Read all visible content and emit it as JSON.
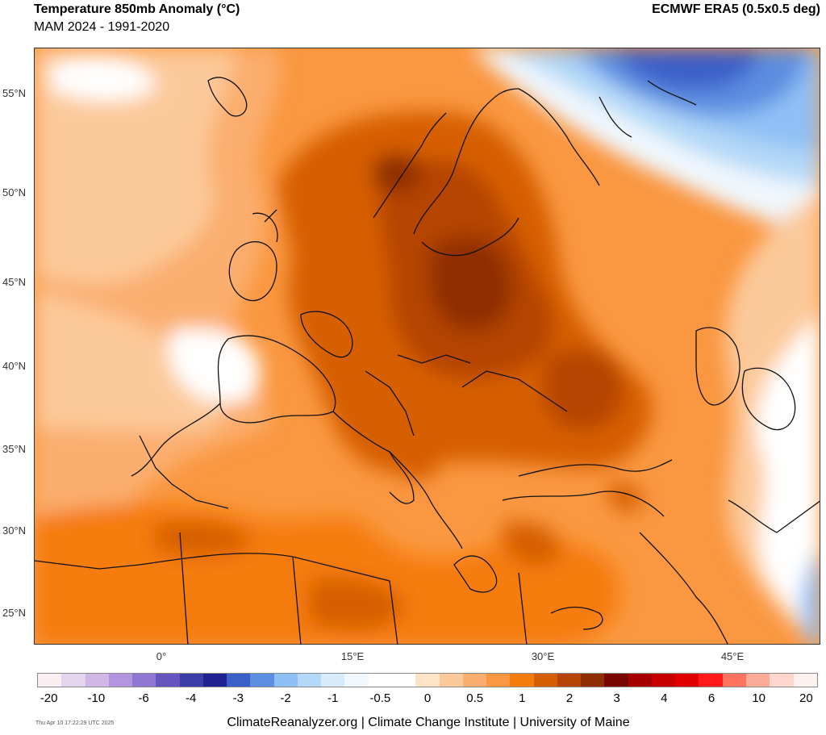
{
  "header": {
    "title": "Temperature 850mb Anomaly (°C)",
    "subtitle": "MAM 2024 - 1991-2020",
    "source": "ECMWF ERA5 (0.5x0.5 deg)"
  },
  "map": {
    "lat_labels": [
      "55°N",
      "50°N",
      "45°N",
      "40°N",
      "35°N",
      "30°N",
      "25°N"
    ],
    "lon_labels": [
      "0°",
      "15°E",
      "30°E",
      "45°E"
    ]
  },
  "colorbar": {
    "colors": [
      "#fbeef3",
      "#e4d4ee",
      "#d1b7e5",
      "#b394de",
      "#8f77d2",
      "#6655bf",
      "#3b3ea6",
      "#1f2290",
      "#3a5fc9",
      "#5b8de0",
      "#8fc0f5",
      "#b4d8f7",
      "#d8ebfb",
      "#f0f7fd",
      "#ffffff",
      "#ffffff",
      "#fde3c7",
      "#fcc99a",
      "#fbae6e",
      "#fa9740",
      "#f57b0d",
      "#d65f06",
      "#b54403",
      "#8f2d03",
      "#7a0303",
      "#a60000",
      "#c80000",
      "#e00000",
      "#ff1a1a",
      "#ff7460",
      "#fbac99",
      "#fdd7ce",
      "#fdf1ee"
    ],
    "labels": [
      "-20",
      "-10",
      "-6",
      "-4",
      "-3",
      "-2",
      "-1",
      "-0.5",
      "0",
      "0.5",
      "1",
      "2",
      "3",
      "4",
      "6",
      "10",
      "20"
    ]
  },
  "footer": {
    "timestamp": "Thu Apr 10 17:22:29 UTC 2025",
    "credit": "ClimateReanalyzer.org | Climate Change Institute | University of Maine"
  }
}
